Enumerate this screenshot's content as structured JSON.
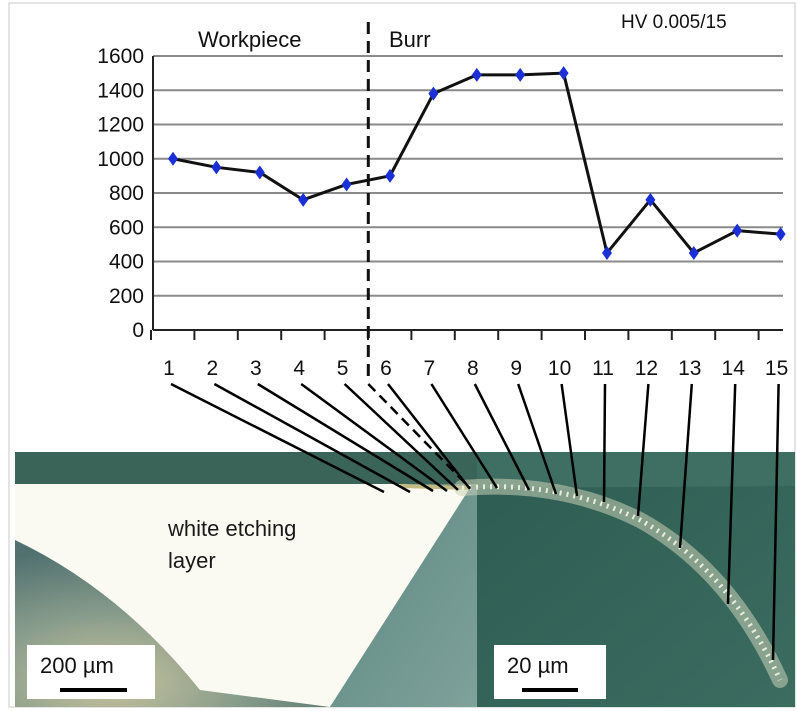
{
  "chart_data": {
    "type": "line",
    "unit_label": "HV 0.005/15",
    "regions": [
      "Workpiece",
      "Burr"
    ],
    "x": [
      1,
      2,
      3,
      4,
      5,
      6,
      7,
      8,
      9,
      10,
      11,
      12,
      13,
      14,
      15
    ],
    "x_tick_labels": [
      "1",
      "2",
      "3",
      "4",
      "5",
      "6",
      "7",
      "8",
      "9",
      "10",
      "11",
      "12",
      "13",
      "14",
      "15"
    ],
    "y_ticks": [
      0,
      200,
      400,
      600,
      800,
      1000,
      1200,
      1400,
      1600
    ],
    "ylim": [
      0,
      1600
    ],
    "grid": true,
    "series": [
      {
        "values": [
          1000,
          950,
          920,
          760,
          850,
          900,
          1380,
          1490,
          1490,
          1500,
          450,
          760,
          450,
          580,
          560
        ],
        "color": "#111111",
        "marker_color": "#1a2fd6"
      }
    ],
    "boundary_after_x": 5
  },
  "micrograph": {
    "caption_line1": "white etching",
    "caption_line2": "layer",
    "scale_bar_left": "200 µm",
    "scale_bar_right": "20 µm",
    "colors": {
      "dark_phase": "#2e5a4f",
      "light_phase": "#fbfaf2",
      "overlay": "#3c6a5d"
    }
  }
}
